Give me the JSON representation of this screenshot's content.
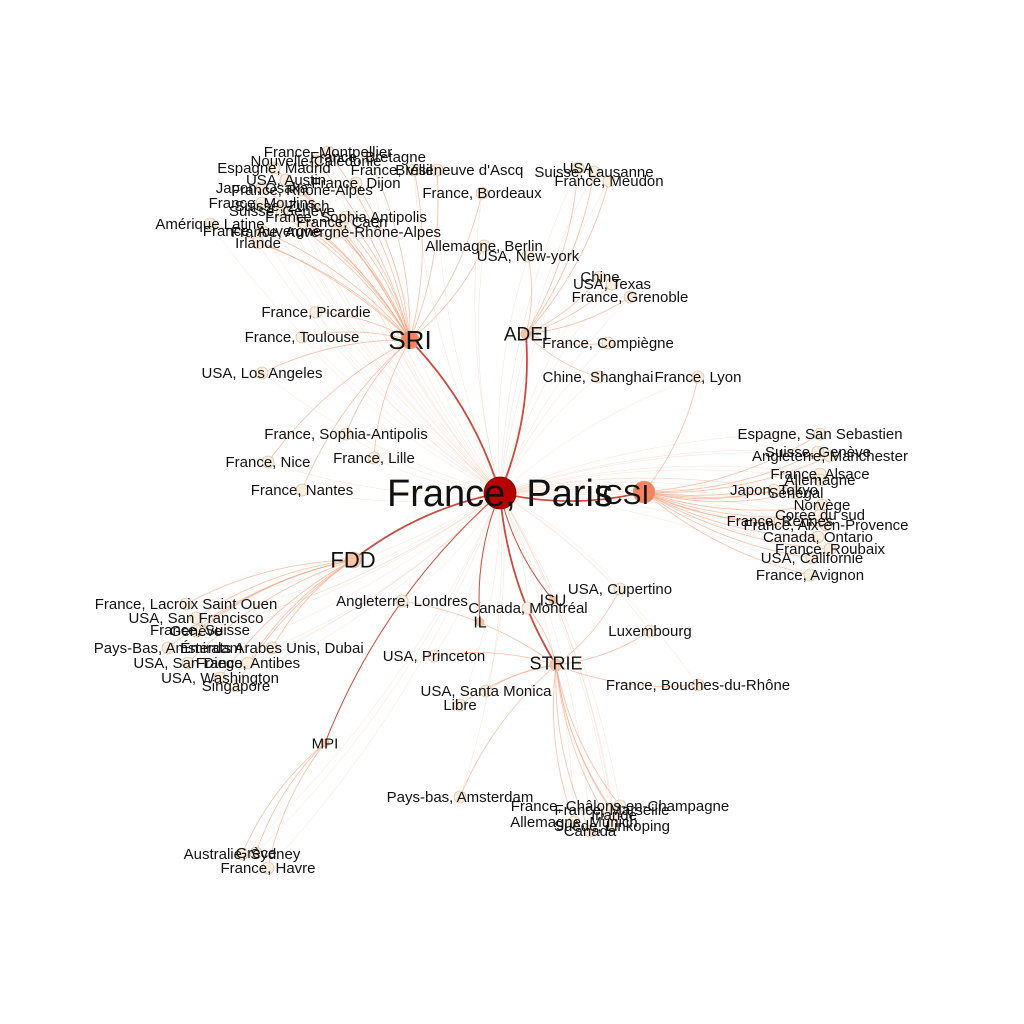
{
  "colors": {
    "background": "#ffffff",
    "edge_main": "#c0392b",
    "edge_light": "#f4a582",
    "node_center": "#b50000",
    "node_hub": "#f4845f",
    "node_hub_light": "#fbc4a6",
    "node_leaf": "#fdeedd",
    "node_stroke": "#c9b49a",
    "label": "#111111"
  },
  "graph": {
    "center": "France, Paris",
    "hubs": [
      "ICSI",
      "SRI",
      "FDD",
      "STRIE",
      "ADEI",
      "MPI",
      "ISU",
      "IL"
    ],
    "hub_links": [
      {
        "source": "France, Paris",
        "target": "ICSI",
        "weight": "strong"
      },
      {
        "source": "France, Paris",
        "target": "SRI",
        "weight": "strong"
      },
      {
        "source": "France, Paris",
        "target": "FDD",
        "weight": "strong"
      },
      {
        "source": "France, Paris",
        "target": "STRIE",
        "weight": "strong"
      },
      {
        "source": "France, Paris",
        "target": "ADEI",
        "weight": "strong"
      },
      {
        "source": "France, Paris",
        "target": "MPI",
        "weight": "medium"
      },
      {
        "source": "France, Paris",
        "target": "ISU",
        "weight": "medium"
      },
      {
        "source": "France, Paris",
        "target": "IL",
        "weight": "medium"
      }
    ],
    "groups": [
      {
        "hub": "SRI",
        "labels": [
          "France, Montpellier",
          "France, Bretagne",
          "Nouvelle-Calédonie",
          "France, Villeneuve d'Ascq",
          "Espagne, Madrid",
          "Brésil",
          "USA, Austin",
          "France, Dijon",
          "Japon, Osaka",
          "France, Rhône-Alpes",
          "France, Moulins",
          "Suisse, Zurich",
          "Suisse, Genève",
          "France, Caen",
          "Amérique Latine",
          "France, Auvergne",
          "France, Auvergne-Rhône-Alpes",
          "Irlande",
          "France, Sophia Antipolis",
          "France, Bordeaux",
          "Allemagne, Berlin",
          "France, Picardie",
          "France, Toulouse",
          "USA, Los Angeles",
          "France, Sophia-Antipolis",
          "France, Nice",
          "France, Lille",
          "France, Nantes"
        ]
      },
      {
        "hub": "ADEI",
        "labels": [
          "USA",
          "Suisse, Lausanne",
          "France, Meudon",
          "USA, New-york",
          "Chine",
          "USA, Texas",
          "France, Grenoble",
          "France, Compiègne",
          "Chine, Shanghai"
        ]
      },
      {
        "hub": "ICSI",
        "labels": [
          "France, Lyon",
          "Espagne, San Sebastien",
          "Suisse, Genève",
          "Angleterre, Manchester",
          "France, Alsace",
          "Allemagne",
          "Japon, Tokyo",
          "Sénégal",
          "Norvège",
          "Corée du sud",
          "France, Rennes",
          "France, Aix-en-Provence",
          "Canada, Ontario",
          "France, Roubaix",
          "USA, Californie",
          "France, Avignon"
        ]
      },
      {
        "hub": "FDD",
        "labels": [
          "France, Lacroix Saint Ouen",
          "USA, San Francisco",
          "France, Suisse",
          "Genève",
          "Pays-Bas, Amsterdam",
          "Émirats Arabes Unis, Dubai",
          "USA, San Diego",
          "France, Antibes",
          "USA, Washington",
          "Singapore"
        ]
      },
      {
        "hub": "STRIE",
        "labels": [
          "Angleterre, Londres",
          "Canada, Montréal",
          "USA, Cupertino",
          "Luxembourg",
          "USA, Princeton",
          "USA, Santa Monica",
          "Libre",
          "France, Bouches-du-Rhône",
          "Pays-bas, Amsterdam",
          "France, Châlons-en-Champagne",
          "France, Marseille",
          "Irlande",
          "Allemagne, Munich",
          "Suède, Linkoping",
          "Canada"
        ]
      },
      {
        "hub": "MPI",
        "labels": [
          "Australie, Sydney",
          "Grèce",
          "France, Havre"
        ]
      }
    ]
  }
}
